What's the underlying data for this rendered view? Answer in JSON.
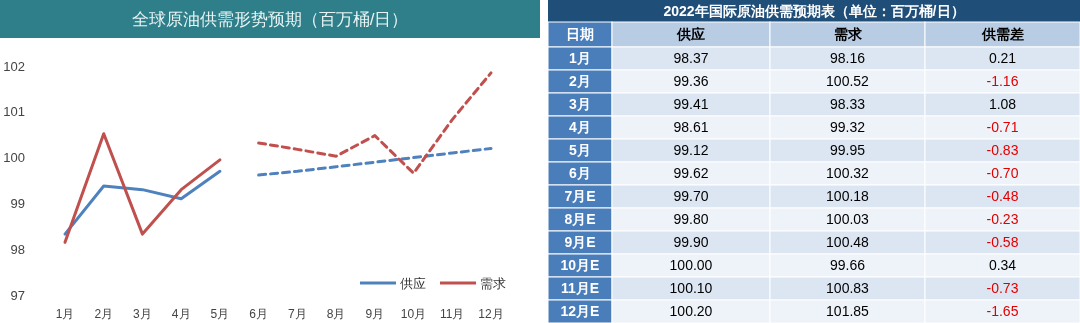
{
  "chart_data": [
    {
      "type": "line",
      "title": "全球原油供需形势预期（百万桶/日）",
      "categories": [
        "1月",
        "2月",
        "3月",
        "4月",
        "5月",
        "6月",
        "7月",
        "8月",
        "9月",
        "10月",
        "11月",
        "12月"
      ],
      "series": [
        {
          "name": "供应",
          "color": "#4f81bd",
          "line_style": "solid",
          "values": [
            98.33,
            99.38,
            99.3,
            99.1,
            99.7,
            null,
            null,
            null,
            null,
            null,
            null,
            null
          ]
        },
        {
          "color": "#4f81bd",
          "line_style": "dashed",
          "values": [
            null,
            null,
            null,
            null,
            null,
            99.62,
            99.7,
            99.8,
            99.9,
            100.0,
            100.1,
            100.2
          ]
        },
        {
          "name": "需求",
          "color": "#c0504d",
          "line_style": "solid",
          "values": [
            98.15,
            100.52,
            98.33,
            99.3,
            99.95,
            null,
            null,
            null,
            null,
            null,
            null,
            null
          ]
        },
        {
          "color": "#c0504d",
          "line_style": "dashed",
          "values": [
            null,
            null,
            null,
            null,
            null,
            100.32,
            100.18,
            100.03,
            100.48,
            99.66,
            100.83,
            101.85
          ]
        }
      ],
      "ylim": [
        97,
        102
      ],
      "yticks": [
        97,
        98,
        99,
        100,
        101,
        102
      ],
      "legend": "bottom right",
      "grid": false
    },
    {
      "type": "heatmap",
      "title": "2022年国际原油供需预期表（单位：百万桶/日）",
      "ylabel": "日期",
      "categories": [
        "供应",
        "需求",
        "供需差"
      ],
      "y_categories": [
        "1月",
        "2月",
        "3月",
        "4月",
        "5月",
        "6月",
        "7月E",
        "8月E",
        "9月E",
        "10月E",
        "11月E",
        "12月E"
      ],
      "cells": [
        [
          98.37,
          98.16,
          0.21
        ],
        [
          99.36,
          100.52,
          -1.16
        ],
        [
          99.41,
          98.33,
          1.08
        ],
        [
          98.61,
          99.32,
          -0.71
        ],
        [
          99.12,
          99.95,
          -0.83
        ],
        [
          99.62,
          100.32,
          -0.7
        ],
        [
          99.7,
          100.18,
          -0.48
        ],
        [
          99.8,
          100.03,
          -0.23
        ],
        [
          99.9,
          100.48,
          -0.58
        ],
        [
          100.0,
          99.66,
          0.34
        ],
        [
          100.1,
          100.83,
          -0.73
        ],
        [
          100.2,
          101.85,
          -1.65
        ]
      ],
      "cell_labels": [
        [
          "98.37",
          "98.16",
          "0.21"
        ],
        [
          "99.36",
          "100.52",
          "-1.16"
        ],
        [
          "99.41",
          "98.33",
          "1.08"
        ],
        [
          "98.61",
          "99.32",
          "-0.71"
        ],
        [
          "99.12",
          "99.95",
          "-0.83"
        ],
        [
          "99.62",
          "100.32",
          "-0.70"
        ],
        [
          "99.70",
          "100.18",
          "-0.48"
        ],
        [
          "99.80",
          "100.03",
          "-0.23"
        ],
        [
          "99.90",
          "100.48",
          "-0.58"
        ],
        [
          "100.00",
          "99.66",
          "0.34"
        ],
        [
          "100.10",
          "100.83",
          "-0.73"
        ],
        [
          "100.20",
          "101.85",
          "-1.65"
        ]
      ]
    }
  ]
}
